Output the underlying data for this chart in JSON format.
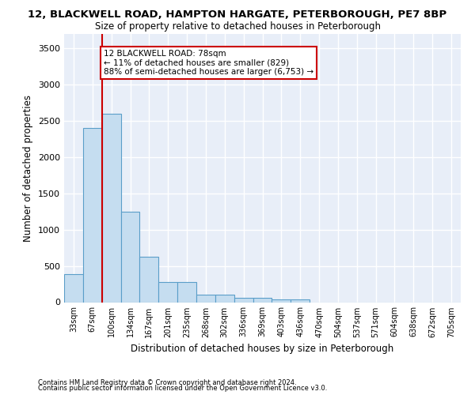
{
  "title_line1": "12, BLACKWELL ROAD, HAMPTON HARGATE, PETERBOROUGH, PE7 8BP",
  "title_line2": "Size of property relative to detached houses in Peterborough",
  "xlabel": "Distribution of detached houses by size in Peterborough",
  "ylabel": "Number of detached properties",
  "categories": [
    "33sqm",
    "67sqm",
    "100sqm",
    "134sqm",
    "167sqm",
    "201sqm",
    "235sqm",
    "268sqm",
    "302sqm",
    "336sqm",
    "369sqm",
    "403sqm",
    "436sqm",
    "470sqm",
    "504sqm",
    "537sqm",
    "571sqm",
    "604sqm",
    "638sqm",
    "672sqm",
    "705sqm"
  ],
  "values": [
    390,
    2400,
    2600,
    1250,
    630,
    280,
    280,
    100,
    100,
    60,
    60,
    40,
    40,
    0,
    0,
    0,
    0,
    0,
    0,
    0,
    0
  ],
  "bar_color": "#c5ddf0",
  "bar_edge_color": "#5a9ec9",
  "vline_x_index": 1.5,
  "vline_color": "#cc0000",
  "annotation_text": "12 BLACKWELL ROAD: 78sqm\n← 11% of detached houses are smaller (829)\n88% of semi-detached houses are larger (6,753) →",
  "annotation_box_color": "#ffffff",
  "annotation_box_edge": "#cc0000",
  "ylim": [
    0,
    3700
  ],
  "yticks": [
    0,
    500,
    1000,
    1500,
    2000,
    2500,
    3000,
    3500
  ],
  "background_color": "#e8eef8",
  "grid_color": "#ffffff",
  "footer1": "Contains HM Land Registry data © Crown copyright and database right 2024.",
  "footer2": "Contains public sector information licensed under the Open Government Licence v3.0."
}
